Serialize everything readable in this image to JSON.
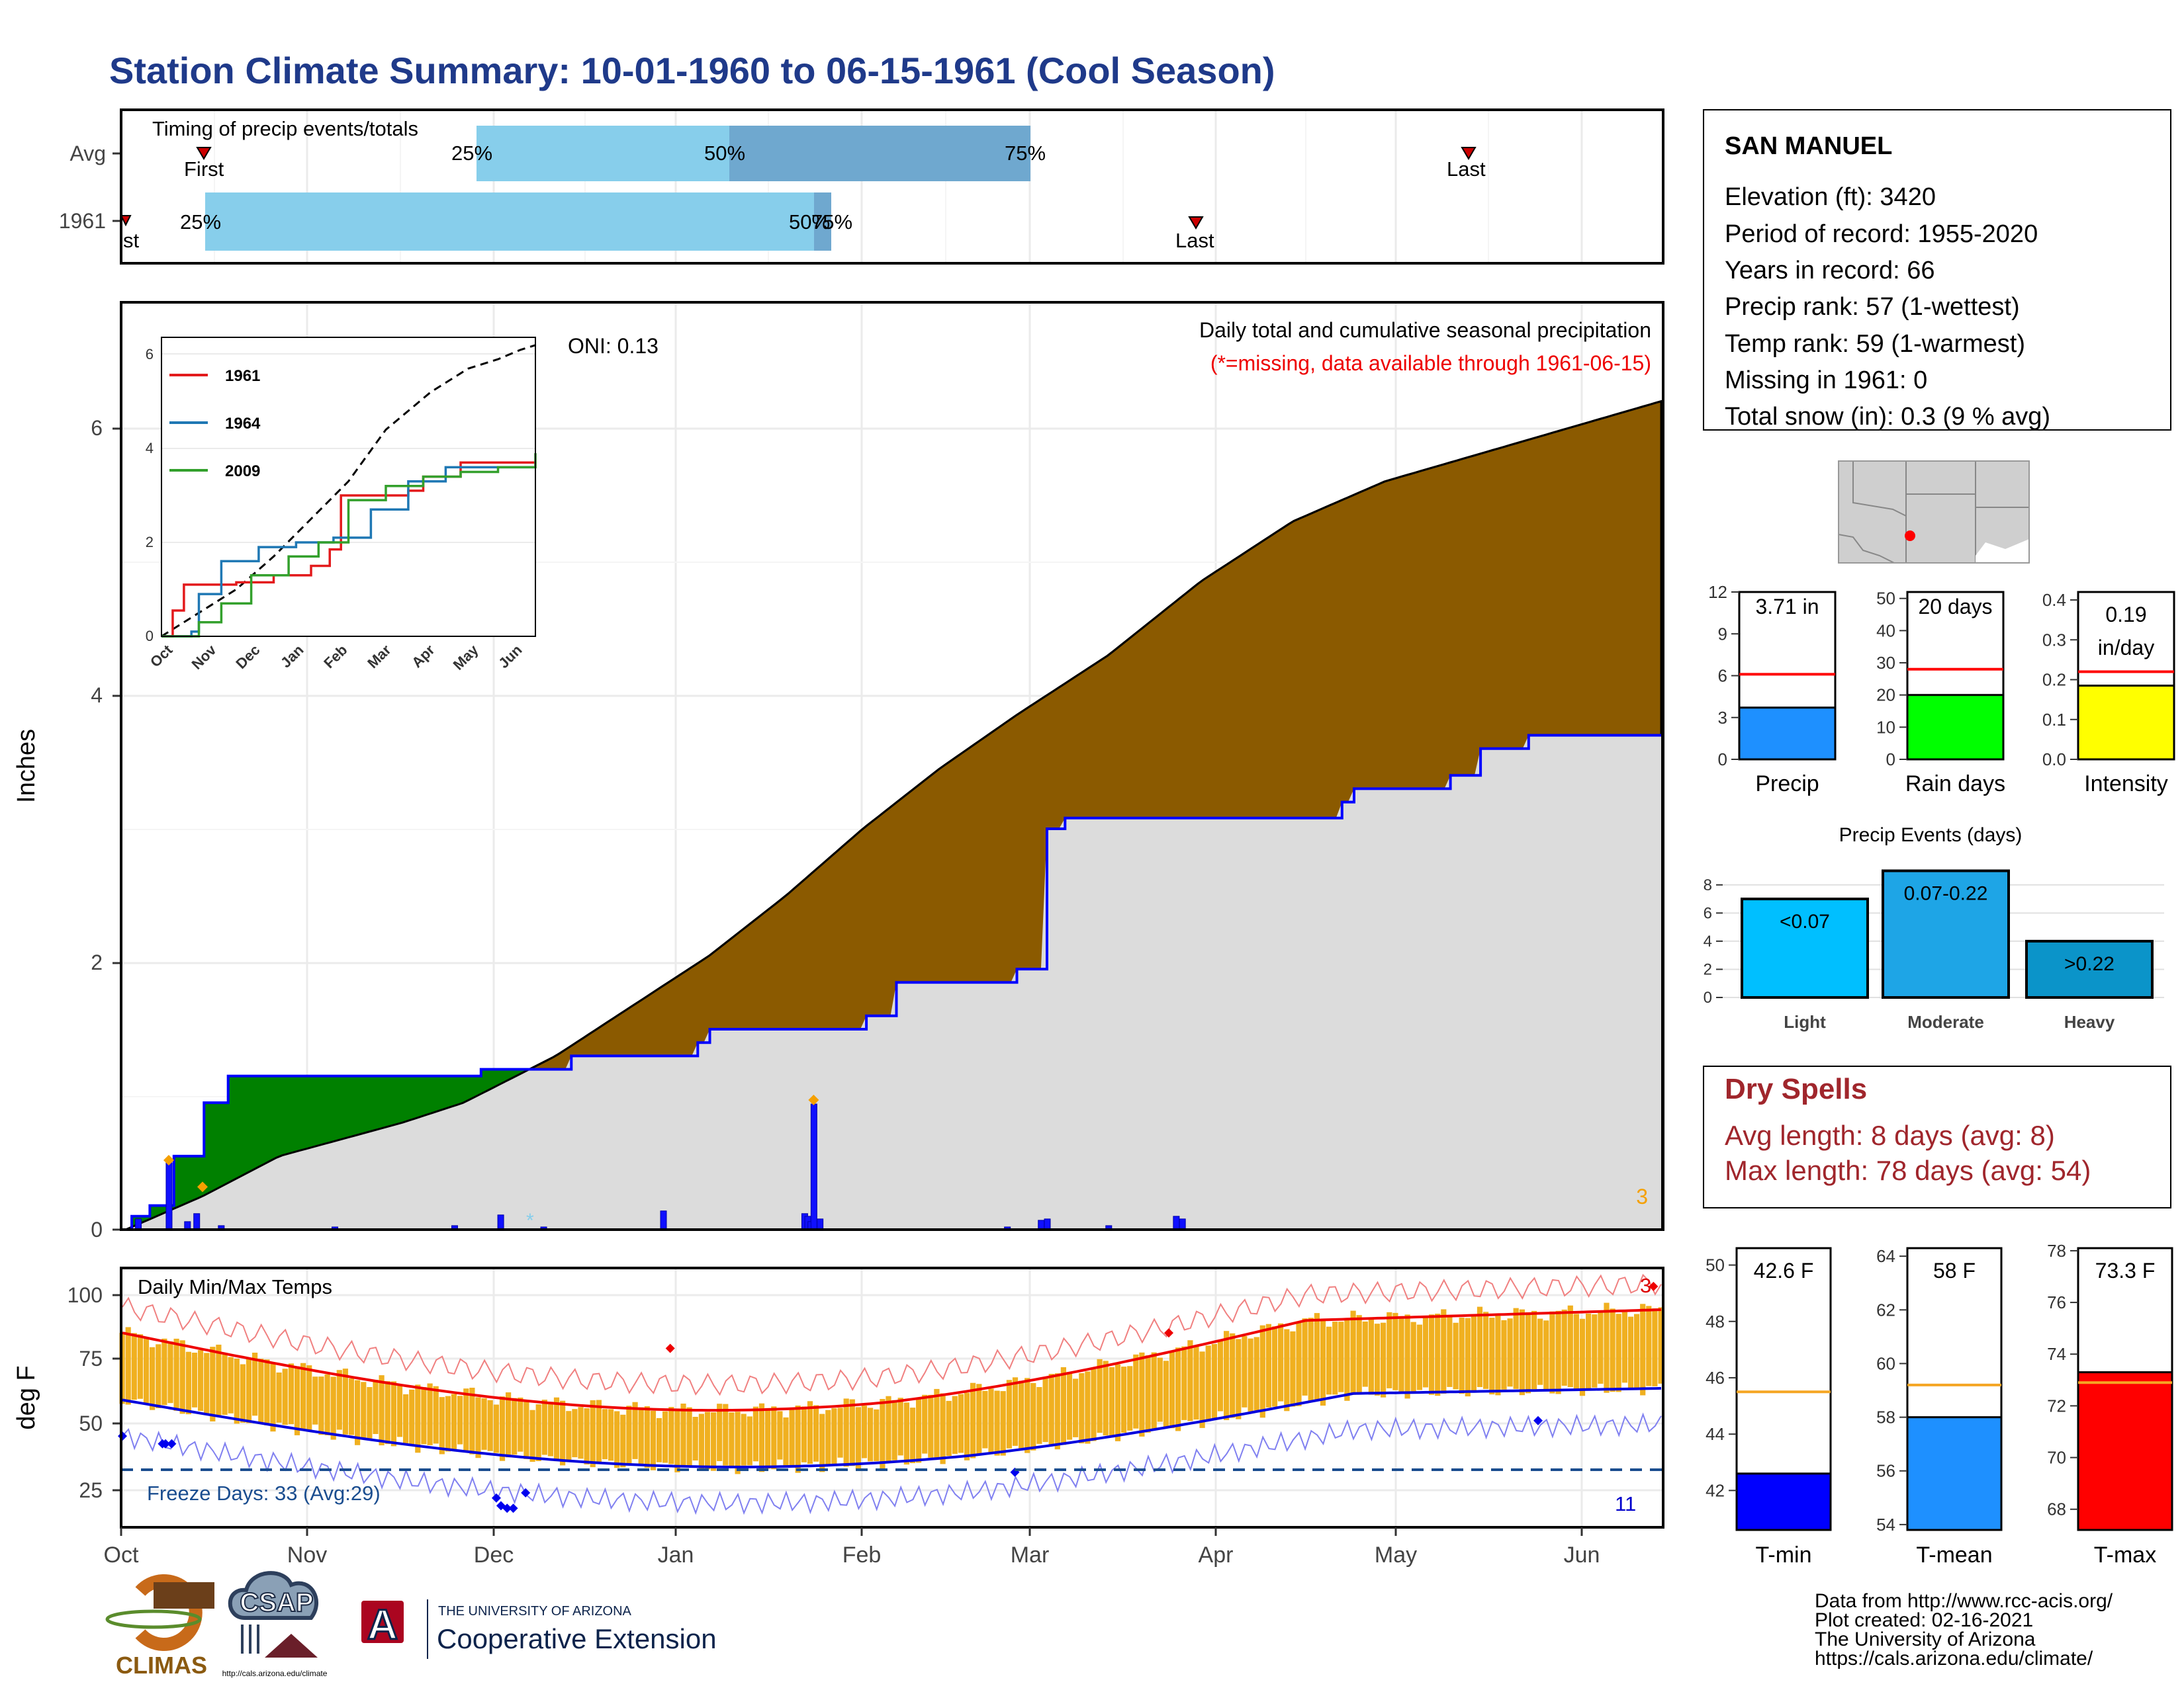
{
  "title": "Station Climate Summary: 10-01-1960 to 06-15-1961 (Cool Season)",
  "timing": {
    "title": "Timing of precip events/totals",
    "rows": [
      "Avg",
      "1961"
    ],
    "first_label": "First",
    "first_label_1961": "st",
    "last_label": "Last",
    "pct_labels": [
      "25%",
      "50%",
      "75%"
    ],
    "pct_label_1961_overlap": "75%"
  },
  "station": {
    "name": "SAN MANUEL",
    "lines": [
      "Elevation (ft): 3420",
      "Period of record: 1955-2020",
      "Years in record: 66",
      "Precip rank: 57 (1-wettest)",
      "Temp rank: 59 (1-warmest)",
      "Missing in 1961: 0",
      "Total snow (in): 0.3 (9 % avg)"
    ]
  },
  "precip_panel": {
    "ylabel": "Inches",
    "yticks": [
      "0",
      "2",
      "4",
      "6"
    ],
    "oni": "ONI: 0.13",
    "caption": "Daily total and cumulative seasonal precipitation",
    "missing_note": "(*=missing, data available through 1961-06-15)",
    "corner_count": "3",
    "colors": {
      "cum_avg_fill": "#8b5a00",
      "cum_year_fill": "#dcdcdc",
      "wetter_fill": "#008000",
      "year_line": "#0000ff",
      "bars": "#1010ff"
    }
  },
  "inset": {
    "yticks": [
      "0",
      "2",
      "4",
      "6"
    ],
    "months": [
      "Oct",
      "Nov",
      "Dec",
      "Jan",
      "Feb",
      "Mar",
      "Apr",
      "May",
      "Jun"
    ],
    "legend": [
      {
        "label": "1961",
        "color": "#e31a1c"
      },
      {
        "label": "1964",
        "color": "#1f78b4"
      },
      {
        "label": "2009",
        "color": "#33a02c"
      }
    ]
  },
  "temp_panel": {
    "ylabel": "deg F",
    "yticks": [
      "100",
      "75",
      "50",
      "25"
    ],
    "title": "Daily Min/Max Temps",
    "freeze_label": "Freeze Days: 33 (Avg:29)",
    "count_low": "11",
    "count_high": "3"
  },
  "months": [
    "Oct",
    "Nov",
    "Dec",
    "Jan",
    "Feb",
    "Mar",
    "Apr",
    "May",
    "Jun"
  ],
  "mini_bars": [
    {
      "label": "Precip",
      "value_label": "3.71 in",
      "value": 3.71,
      "avg": 6.1,
      "ymax": 12,
      "ticks": [
        "12",
        "9",
        "6",
        "3",
        "0"
      ],
      "color": "#1e90ff"
    },
    {
      "label": "Rain days",
      "value_label": "20 days",
      "value": 20,
      "avg": 28,
      "ymax": 52,
      "ticks": [
        "50",
        "40",
        "30",
        "20",
        "10",
        "0"
      ],
      "color": "#00ff00"
    },
    {
      "label": "Intensity",
      "value_label": "0.19",
      "value_label2": "in/day",
      "value": 0.185,
      "avg": 0.22,
      "ymax": 0.42,
      "ticks": [
        "0.4",
        "0.3",
        "0.2",
        "0.1",
        "0.0"
      ],
      "color": "#ffff00"
    }
  ],
  "events": {
    "title": "Precip Events (days)",
    "ticks": [
      "8",
      "6",
      "4",
      "2",
      "0"
    ],
    "bars": [
      {
        "label": "Light",
        "value_label": "<0.07",
        "value": 7,
        "color": "#00bfff"
      },
      {
        "label": "Moderate",
        "value_label": "0.07-0.22",
        "value": 9,
        "color": "#1ea5e6"
      },
      {
        "label": "Heavy",
        "value_label": ">0.22",
        "value": 4,
        "color": "#0b94c9"
      }
    ]
  },
  "dry_spells": {
    "title": "Dry Spells",
    "lines": [
      "Avg length: 8 days (avg: 8)",
      "Max length: 78 days (avg: 54)"
    ]
  },
  "temp_bars": [
    {
      "label": "T-min",
      "value_label": "42.6 F",
      "value": 42.6,
      "avg": 45.5,
      "ymin": 40.6,
      "ymax": 50.6,
      "ticks": [
        "50",
        "48",
        "46",
        "44",
        "42"
      ],
      "tickvals": [
        50,
        48,
        46,
        44,
        42
      ],
      "color": "#0000ff"
    },
    {
      "label": "T-mean",
      "value_label": "58 F",
      "value": 58,
      "avg": 59.2,
      "ymin": 53.8,
      "ymax": 64.3,
      "ticks": [
        "64",
        "62",
        "60",
        "58",
        "56",
        "54"
      ],
      "tickvals": [
        64,
        62,
        60,
        58,
        56,
        54
      ],
      "color": "#1e90ff"
    },
    {
      "label": "T-max",
      "value_label": "73.3 F",
      "value": 73.3,
      "avg": 72.9,
      "ymin": 67.2,
      "ymax": 78.1,
      "ticks": [
        "78",
        "76",
        "74",
        "72",
        "70",
        "68"
      ],
      "tickvals": [
        78,
        76,
        74,
        72,
        70,
        68
      ],
      "color": "#ff0000"
    }
  ],
  "footer": {
    "lines": [
      "Data from http://www.rcc-acis.org/",
      "Plot created: 02-16-2021",
      "The University of Arizona",
      "https://cals.arizona.edu/climate/"
    ],
    "logo_climas": "CLIMAS",
    "logo_csap": "CSAP",
    "csap_url": "http://cals.arizona.edu/climate",
    "ua_line1": "THE UNIVERSITY OF ARIZONA",
    "ua_line2": "Cooperative Extension",
    "ua_letter": "A"
  }
}
